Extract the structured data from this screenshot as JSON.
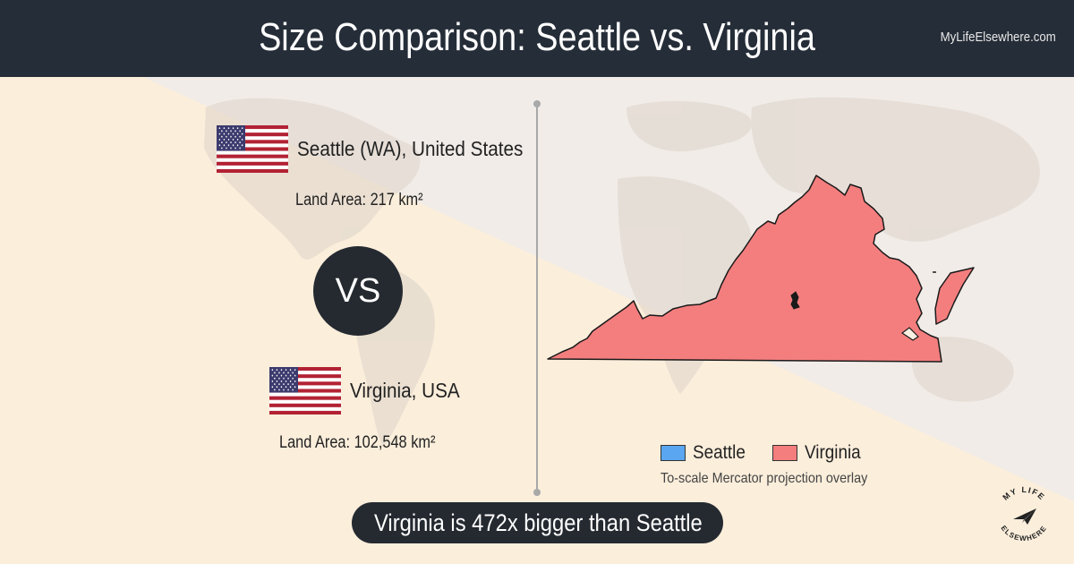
{
  "header": {
    "title": "Size Comparison: Seattle vs. Virginia",
    "site": "MyLifeElsewhere.com"
  },
  "place_a": {
    "name": "Seattle (WA), United States",
    "land_area": "Land Area: 217 km²",
    "color": "#5aa6f0"
  },
  "vs_label": "VS",
  "place_b": {
    "name": "Virginia, USA",
    "land_area": "Land Area: 102,548 km²",
    "color": "#f47e7e"
  },
  "legend": {
    "items": [
      {
        "label": "Seattle",
        "color": "#5aa6f0"
      },
      {
        "label": "Virginia",
        "color": "#f47e7e"
      }
    ],
    "note": "To-scale Mercator projection overlay"
  },
  "result": "Virginia is 472x bigger than Seattle",
  "logo": {
    "top_text": "MY LIFE",
    "bottom_text": "ELSEWHERE",
    "icon": "paper-plane-icon"
  },
  "colors": {
    "header_bg": "#252d38",
    "pill_bg": "#252a31"
  }
}
